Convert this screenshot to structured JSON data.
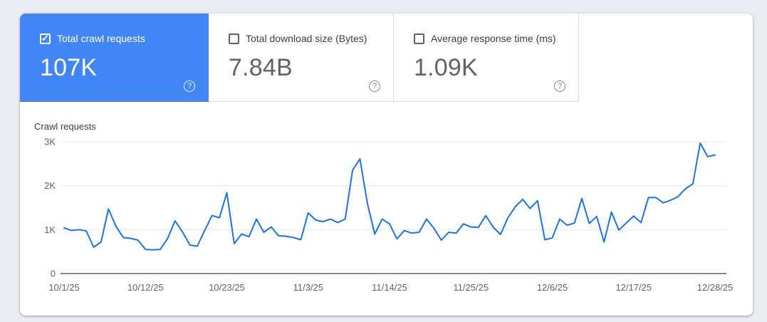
{
  "icons": {
    "help": "?",
    "check": "✓"
  },
  "colors": {
    "background": "#eaecf2",
    "card": "#ffffff",
    "selected_tile": "#4285f4",
    "line": "#1a73e8",
    "border": "#dadce0",
    "axis_text": "#5f6368"
  },
  "metrics": [
    {
      "label": "Total crawl requests",
      "value": "107K",
      "selected": true,
      "checked": true
    },
    {
      "label": "Total download size (Bytes)",
      "value": "7.84B",
      "selected": false,
      "checked": false
    },
    {
      "label": "Average response time (ms)",
      "value": "1.09K",
      "selected": false,
      "checked": false
    }
  ],
  "chart_data": {
    "type": "line",
    "title": "Crawl requests",
    "legend_position": "none",
    "grid": true,
    "line_color": "#1a73e8",
    "ylim": [
      0,
      3000
    ],
    "y_axis": {
      "ticks": [
        {
          "label": "0",
          "value": 0
        },
        {
          "label": "1K",
          "value": 1000
        },
        {
          "label": "2K",
          "value": 2000
        },
        {
          "label": "3K",
          "value": 3000
        }
      ]
    },
    "x_axis": {
      "tick_every": 11,
      "tick_labels": [
        "10/1/25",
        "10/12/25",
        "10/23/25",
        "11/3/25",
        "11/14/25",
        "11/25/25",
        "12/6/25",
        "12/17/25",
        "12/28/25"
      ]
    },
    "categories": [
      "10/1/25",
      "10/2/25",
      "10/3/25",
      "10/4/25",
      "10/5/25",
      "10/6/25",
      "10/7/25",
      "10/8/25",
      "10/9/25",
      "10/10/25",
      "10/11/25",
      "10/12/25",
      "10/13/25",
      "10/14/25",
      "10/15/25",
      "10/16/25",
      "10/17/25",
      "10/18/25",
      "10/19/25",
      "10/20/25",
      "10/21/25",
      "10/22/25",
      "10/23/25",
      "10/24/25",
      "10/25/25",
      "10/26/25",
      "10/27/25",
      "10/28/25",
      "10/29/25",
      "10/30/25",
      "10/31/25",
      "11/1/25",
      "11/2/25",
      "11/3/25",
      "11/4/25",
      "11/5/25",
      "11/6/25",
      "11/7/25",
      "11/8/25",
      "11/9/25",
      "11/10/25",
      "11/11/25",
      "11/12/25",
      "11/13/25",
      "11/14/25",
      "11/15/25",
      "11/16/25",
      "11/17/25",
      "11/18/25",
      "11/19/25",
      "11/20/25",
      "11/21/25",
      "11/22/25",
      "11/23/25",
      "11/24/25",
      "11/25/25",
      "11/26/25",
      "11/27/25",
      "11/28/25",
      "11/29/25",
      "11/30/25",
      "12/1/25",
      "12/2/25",
      "12/3/25",
      "12/4/25",
      "12/5/25",
      "12/6/25",
      "12/7/25",
      "12/8/25",
      "12/9/25",
      "12/10/25",
      "12/11/25",
      "12/12/25",
      "12/13/25",
      "12/14/25",
      "12/15/25",
      "12/16/25",
      "12/17/25",
      "12/18/25",
      "12/19/25",
      "12/20/25",
      "12/21/25",
      "12/22/25",
      "12/23/25",
      "12/24/25",
      "12/25/25",
      "12/26/25",
      "12/27/25",
      "12/28/25"
    ],
    "series": [
      {
        "name": "Crawl requests",
        "values": [
          1040,
          980,
          1000,
          970,
          600,
          720,
          1470,
          1080,
          820,
          800,
          760,
          550,
          540,
          550,
          800,
          1200,
          950,
          650,
          620,
          980,
          1320,
          1270,
          1840,
          680,
          900,
          840,
          1240,
          940,
          1060,
          860,
          850,
          820,
          770,
          1380,
          1220,
          1180,
          1240,
          1160,
          1240,
          2350,
          2610,
          1600,
          900,
          1240,
          1130,
          790,
          980,
          920,
          940,
          1240,
          1030,
          760,
          940,
          920,
          1130,
          1060,
          1050,
          1320,
          1060,
          890,
          1270,
          1520,
          1690,
          1480,
          1660,
          770,
          810,
          1240,
          1100,
          1150,
          1710,
          1140,
          1300,
          720,
          1400,
          990,
          1150,
          1310,
          1160,
          1730,
          1730,
          1610,
          1670,
          1750,
          1930,
          2040,
          2970,
          2660,
          2700
        ]
      }
    ]
  }
}
